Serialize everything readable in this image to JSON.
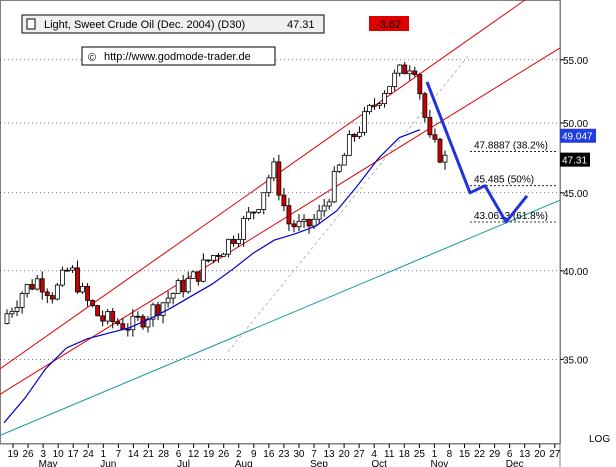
{
  "header": {
    "instrument": "Light, Sweet Crude Oil (Dec. 2004) (D30)",
    "last_price": "47.31",
    "change": "-3.62",
    "copyright_symbol": "©",
    "url": "http://www.godmode-trader.de"
  },
  "chart_data": {
    "type": "candlestick",
    "y_scale": "log",
    "ylim": [
      30.8,
      60.2
    ],
    "y_ticks": [
      35,
      40,
      45,
      50,
      55
    ],
    "y_tick_labels": [
      "35.00",
      "40.00",
      "45.00",
      "50.00",
      "55.00"
    ],
    "y_scale_label": "LOG",
    "x_day_ticks": [
      "19",
      "26",
      "3",
      "10",
      "17",
      "24",
      "1",
      "7",
      "14",
      "21",
      "28",
      "6",
      "12",
      "19",
      "26",
      "2",
      "9",
      "16",
      "23",
      "30",
      "7",
      "13",
      "20",
      "27",
      "4",
      "11",
      "18",
      "25",
      "1",
      "8",
      "15",
      "22",
      "29",
      "6",
      "13",
      "20",
      "27"
    ],
    "x_month_labels": [
      {
        "label": "May",
        "at_day_index": 2
      },
      {
        "label": "Jun",
        "at_day_index": 6
      },
      {
        "label": "Jul",
        "at_day_index": 11
      },
      {
        "label": "Aug",
        "at_day_index": 15
      },
      {
        "label": "Sep",
        "at_day_index": 20
      },
      {
        "label": "Oct",
        "at_day_index": 24
      },
      {
        "label": "Nov",
        "at_day_index": 28
      },
      {
        "label": "Dec",
        "at_day_index": 33
      }
    ],
    "weekly_closes": [
      37.5,
      38.8,
      39.5,
      38.6,
      40.2,
      38.3,
      37.2,
      37.0,
      36.8,
      37.5,
      38.2,
      39.0,
      39.6,
      40.8,
      41.6,
      42.8,
      44.2,
      46.8,
      43.0,
      42.6,
      43.5,
      46.0,
      48.8,
      50.5,
      52.5,
      53.8,
      55.0,
      48.6,
      47.31
    ],
    "moving_average": [
      31.8,
      33.0,
      34.5,
      35.6,
      36.1,
      36.4,
      36.7,
      37.2,
      37.8,
      38.5,
      39.2,
      40.1,
      41.1,
      41.9,
      42.3,
      42.8,
      43.8,
      45.5,
      47.4,
      48.9,
      49.5
    ],
    "current_price": 47.31,
    "moving_average_value": 49.047,
    "fibonacci_levels": [
      {
        "value": 47.8887,
        "label": "47.8887 (38.2%)"
      },
      {
        "value": 45.485,
        "label": "45.485 (50%)"
      },
      {
        "value": 43.0613,
        "label": "43.0613 (61.8%)"
      }
    ],
    "projection_path": [
      53.2,
      45.0,
      45.485,
      43.06,
      44.8
    ],
    "right_labels": {
      "moving_average": "49.047",
      "last_price": "47.31"
    },
    "colors": {
      "up_candle": "#ffffff",
      "down_candle": "#cc0000",
      "candle_outline": "#000000",
      "channel": "#e00000",
      "moving_average": "#0000cc",
      "support": "#119999",
      "projection": "#2233dd",
      "badge_ma": "#1f3de0",
      "badge_last": "#000000",
      "change_badge": "#e00000"
    }
  }
}
